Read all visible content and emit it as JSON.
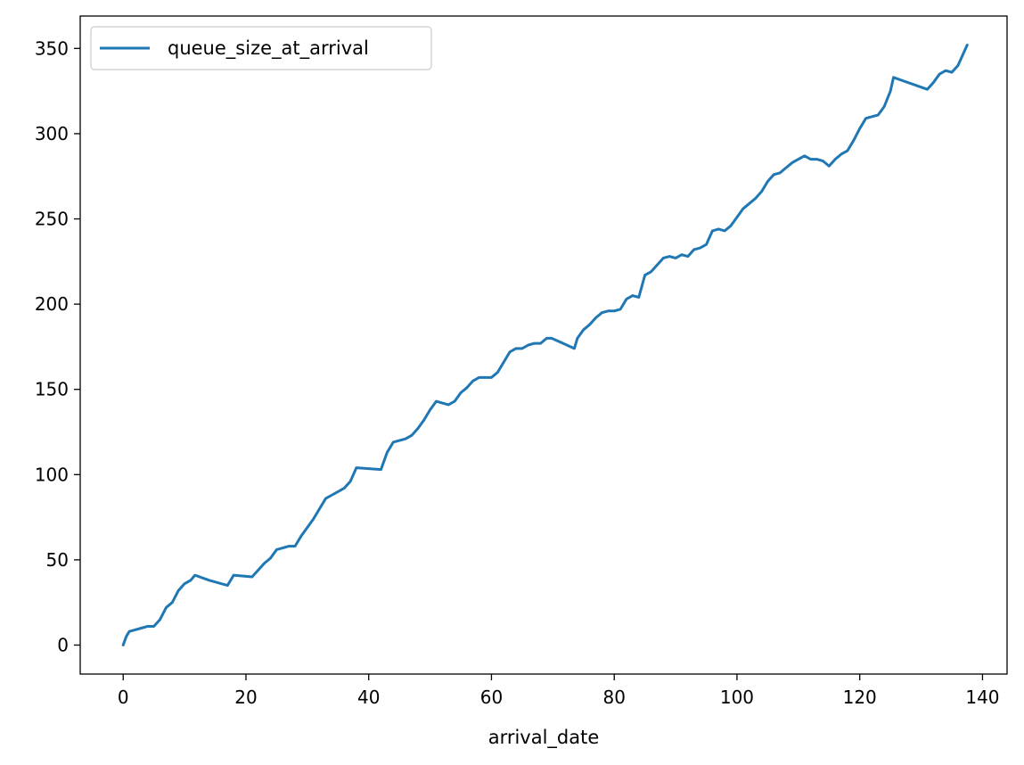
{
  "chart_data": {
    "type": "line",
    "title": "",
    "xlabel": "arrival_date",
    "ylabel": "",
    "xlim": [
      -7,
      144
    ],
    "ylim": [
      -17,
      369
    ],
    "xticks": [
      0,
      20,
      40,
      60,
      80,
      100,
      120,
      140
    ],
    "yticks": [
      0,
      50,
      100,
      150,
      200,
      250,
      300,
      350
    ],
    "grid": false,
    "legend_position": "top-left",
    "series": [
      {
        "name": "queue_size_at_arrival",
        "color": "#1f77b4",
        "x": [
          0,
          0.5,
          1,
          2,
          3,
          4,
          5,
          6,
          7,
          8,
          9,
          10,
          11,
          11.7,
          14,
          17,
          18,
          21,
          22,
          23,
          24,
          25,
          26,
          27,
          28,
          29,
          30,
          31,
          32,
          33,
          34,
          35,
          36,
          37,
          38,
          42,
          43,
          44,
          45,
          46,
          47,
          48,
          49,
          50,
          51,
          52,
          53,
          54,
          55,
          56,
          57,
          58,
          59,
          60,
          61,
          62,
          63,
          64,
          65,
          66,
          67,
          68,
          69,
          69.8,
          73.5,
          74,
          75,
          76,
          77,
          78,
          79,
          80,
          81,
          82,
          83,
          84,
          85,
          86,
          87,
          88,
          89,
          90,
          91,
          92,
          93,
          94,
          95,
          96,
          97,
          98,
          99,
          100,
          101,
          102,
          103,
          104,
          105,
          106,
          107,
          108,
          109,
          110,
          111,
          112,
          113,
          114,
          115,
          116,
          117,
          118,
          119,
          120,
          121,
          122,
          123,
          124,
          125,
          125.5,
          131,
          132,
          133,
          134,
          135,
          136,
          137,
          137.5
        ],
        "y": [
          0,
          5,
          8,
          9,
          10,
          11,
          11,
          15,
          22,
          25,
          32,
          36,
          38,
          41,
          38,
          35,
          41,
          40,
          44,
          48,
          51,
          56,
          57,
          58,
          58,
          64,
          69,
          74,
          80,
          86,
          88,
          90,
          92,
          96,
          104,
          103,
          113,
          119,
          120,
          121,
          123,
          127,
          132,
          138,
          143,
          142,
          141,
          143,
          148,
          151,
          155,
          157,
          157,
          157,
          160,
          166,
          172,
          174,
          174,
          176,
          177,
          177,
          180,
          180,
          174,
          180,
          185,
          188,
          192,
          195,
          196,
          196,
          197,
          203,
          205,
          204,
          217,
          219,
          223,
          227,
          228,
          227,
          229,
          228,
          232,
          233,
          235,
          243,
          244,
          243,
          246,
          251,
          256,
          259,
          262,
          266,
          272,
          276,
          277,
          280,
          283,
          285,
          287,
          285,
          285,
          284,
          281,
          285,
          288,
          290,
          296,
          303,
          309,
          310,
          311,
          316,
          325,
          333,
          326,
          330,
          335,
          337,
          336,
          340,
          348,
          352
        ]
      }
    ]
  }
}
